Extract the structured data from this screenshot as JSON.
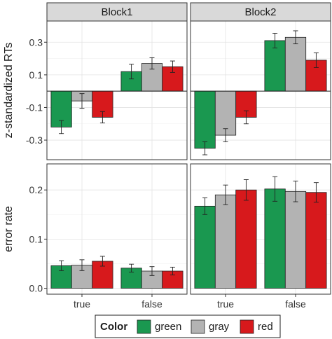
{
  "chart_data": {
    "type": "bar",
    "facet_columns": [
      "Block1",
      "Block2"
    ],
    "categories": [
      "true",
      "false"
    ],
    "legend": {
      "title": "Color",
      "position": "bottom",
      "entries": [
        {
          "key": "green",
          "label": "green",
          "color": "#1a9850"
        },
        {
          "key": "gray",
          "label": "gray",
          "color": "#b3b3b3"
        },
        {
          "key": "red",
          "label": "red",
          "color": "#d7191c"
        }
      ]
    },
    "grid": true,
    "rows": [
      {
        "ylabel": "z-standardized RTs",
        "ylim": [
          -0.42,
          0.43
        ],
        "ticks": [
          -0.3,
          -0.1,
          0.1,
          0.3
        ],
        "tick_labels": [
          "-0.3",
          "-0.1",
          "0.1",
          "0.3"
        ],
        "zero_line": true,
        "panels": [
          {
            "facet": "Block1",
            "series": [
              {
                "key": "green",
                "values": [
                  -0.22,
                  0.12
                ],
                "errors": [
                  0.04,
                  0.045
                ]
              },
              {
                "key": "gray",
                "values": [
                  -0.06,
                  0.17
                ],
                "errors": [
                  0.045,
                  0.035
                ]
              },
              {
                "key": "red",
                "values": [
                  -0.16,
                  0.15
                ],
                "errors": [
                  0.035,
                  0.035
                ]
              }
            ]
          },
          {
            "facet": "Block2",
            "series": [
              {
                "key": "green",
                "values": [
                  -0.35,
                  0.31
                ],
                "errors": [
                  0.04,
                  0.045
                ]
              },
              {
                "key": "gray",
                "values": [
                  -0.27,
                  0.33
                ],
                "errors": [
                  0.04,
                  0.04
                ]
              },
              {
                "key": "red",
                "values": [
                  -0.16,
                  0.19
                ],
                "errors": [
                  0.04,
                  0.045
                ]
              }
            ]
          }
        ]
      },
      {
        "ylabel": "error rate",
        "ylim": [
          -0.012,
          0.253
        ],
        "ticks": [
          0.0,
          0.1,
          0.2
        ],
        "tick_labels": [
          "0.0",
          "0.1",
          "0.2"
        ],
        "zero_line": false,
        "panels": [
          {
            "facet": "Block1",
            "series": [
              {
                "key": "green",
                "values": [
                  0.046,
                  0.041
                ],
                "errors": [
                  0.01,
                  0.008
                ]
              },
              {
                "key": "gray",
                "values": [
                  0.047,
                  0.035
                ],
                "errors": [
                  0.011,
                  0.009
                ]
              },
              {
                "key": "red",
                "values": [
                  0.055,
                  0.035
                ],
                "errors": [
                  0.01,
                  0.008
                ]
              }
            ]
          },
          {
            "facet": "Block2",
            "series": [
              {
                "key": "green",
                "values": [
                  0.167,
                  0.202
                ],
                "errors": [
                  0.017,
                  0.025
                ]
              },
              {
                "key": "gray",
                "values": [
                  0.19,
                  0.197
                ],
                "errors": [
                  0.02,
                  0.021
                ]
              },
              {
                "key": "red",
                "values": [
                  0.2,
                  0.195
                ],
                "errors": [
                  0.021,
                  0.02
                ]
              }
            ]
          }
        ]
      }
    ]
  }
}
